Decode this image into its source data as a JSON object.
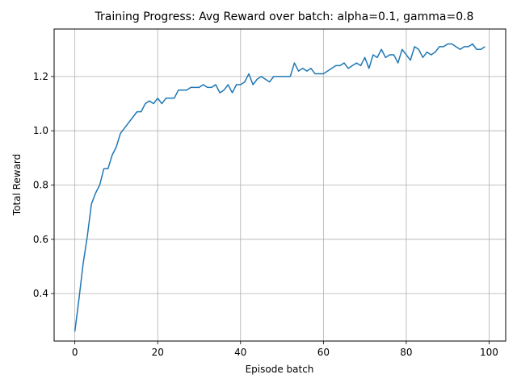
{
  "chart_data": {
    "type": "line",
    "title": "Training Progress: Avg Reward over batch: alpha=0.1, gamma=0.8",
    "xlabel": "Episode batch",
    "ylabel": "Total Reward",
    "xlim": [
      -5,
      104
    ],
    "ylim": [
      0.225,
      1.375
    ],
    "xticks": [
      0,
      20,
      40,
      60,
      80,
      100
    ],
    "yticks": [
      0.4,
      0.6,
      0.8,
      1.0,
      1.2
    ],
    "xtick_labels": [
      "0",
      "20",
      "40",
      "60",
      "80",
      "100"
    ],
    "ytick_labels": [
      "0.4",
      "0.6",
      "0.8",
      "1.0",
      "1.2"
    ],
    "grid": true,
    "series": [
      {
        "color": "#1f77b4",
        "x": [
          0,
          1,
          2,
          3,
          4,
          5,
          6,
          7,
          8,
          9,
          10,
          11,
          12,
          13,
          14,
          15,
          16,
          17,
          18,
          19,
          20,
          21,
          22,
          23,
          24,
          25,
          26,
          27,
          28,
          29,
          30,
          31,
          32,
          33,
          34,
          35,
          36,
          37,
          38,
          39,
          40,
          41,
          42,
          43,
          44,
          45,
          46,
          47,
          48,
          49,
          50,
          51,
          52,
          53,
          54,
          55,
          56,
          57,
          58,
          59,
          60,
          61,
          62,
          63,
          64,
          65,
          66,
          67,
          68,
          69,
          70,
          71,
          72,
          73,
          74,
          75,
          76,
          77,
          78,
          79,
          80,
          81,
          82,
          83,
          84,
          85,
          86,
          87,
          88,
          89,
          90,
          91,
          92,
          93,
          94,
          95,
          96,
          97,
          98,
          99
        ],
        "values": [
          0.26,
          0.38,
          0.51,
          0.61,
          0.73,
          0.77,
          0.8,
          0.86,
          0.86,
          0.91,
          0.94,
          0.99,
          1.01,
          1.03,
          1.05,
          1.07,
          1.07,
          1.1,
          1.11,
          1.1,
          1.12,
          1.1,
          1.12,
          1.12,
          1.12,
          1.15,
          1.15,
          1.15,
          1.16,
          1.16,
          1.16,
          1.17,
          1.16,
          1.16,
          1.17,
          1.14,
          1.15,
          1.17,
          1.14,
          1.17,
          1.17,
          1.18,
          1.21,
          1.17,
          1.19,
          1.2,
          1.19,
          1.18,
          1.2,
          1.2,
          1.2,
          1.2,
          1.2,
          1.25,
          1.22,
          1.23,
          1.22,
          1.23,
          1.21,
          1.21,
          1.21,
          1.22,
          1.23,
          1.24,
          1.24,
          1.25,
          1.23,
          1.24,
          1.25,
          1.24,
          1.27,
          1.23,
          1.28,
          1.27,
          1.3,
          1.27,
          1.28,
          1.28,
          1.25,
          1.3,
          1.28,
          1.26,
          1.31,
          1.3,
          1.27,
          1.29,
          1.28,
          1.29,
          1.31,
          1.31,
          1.32,
          1.32,
          1.31,
          1.3,
          1.31,
          1.31,
          1.32,
          1.3,
          1.3,
          1.31
        ]
      }
    ]
  }
}
